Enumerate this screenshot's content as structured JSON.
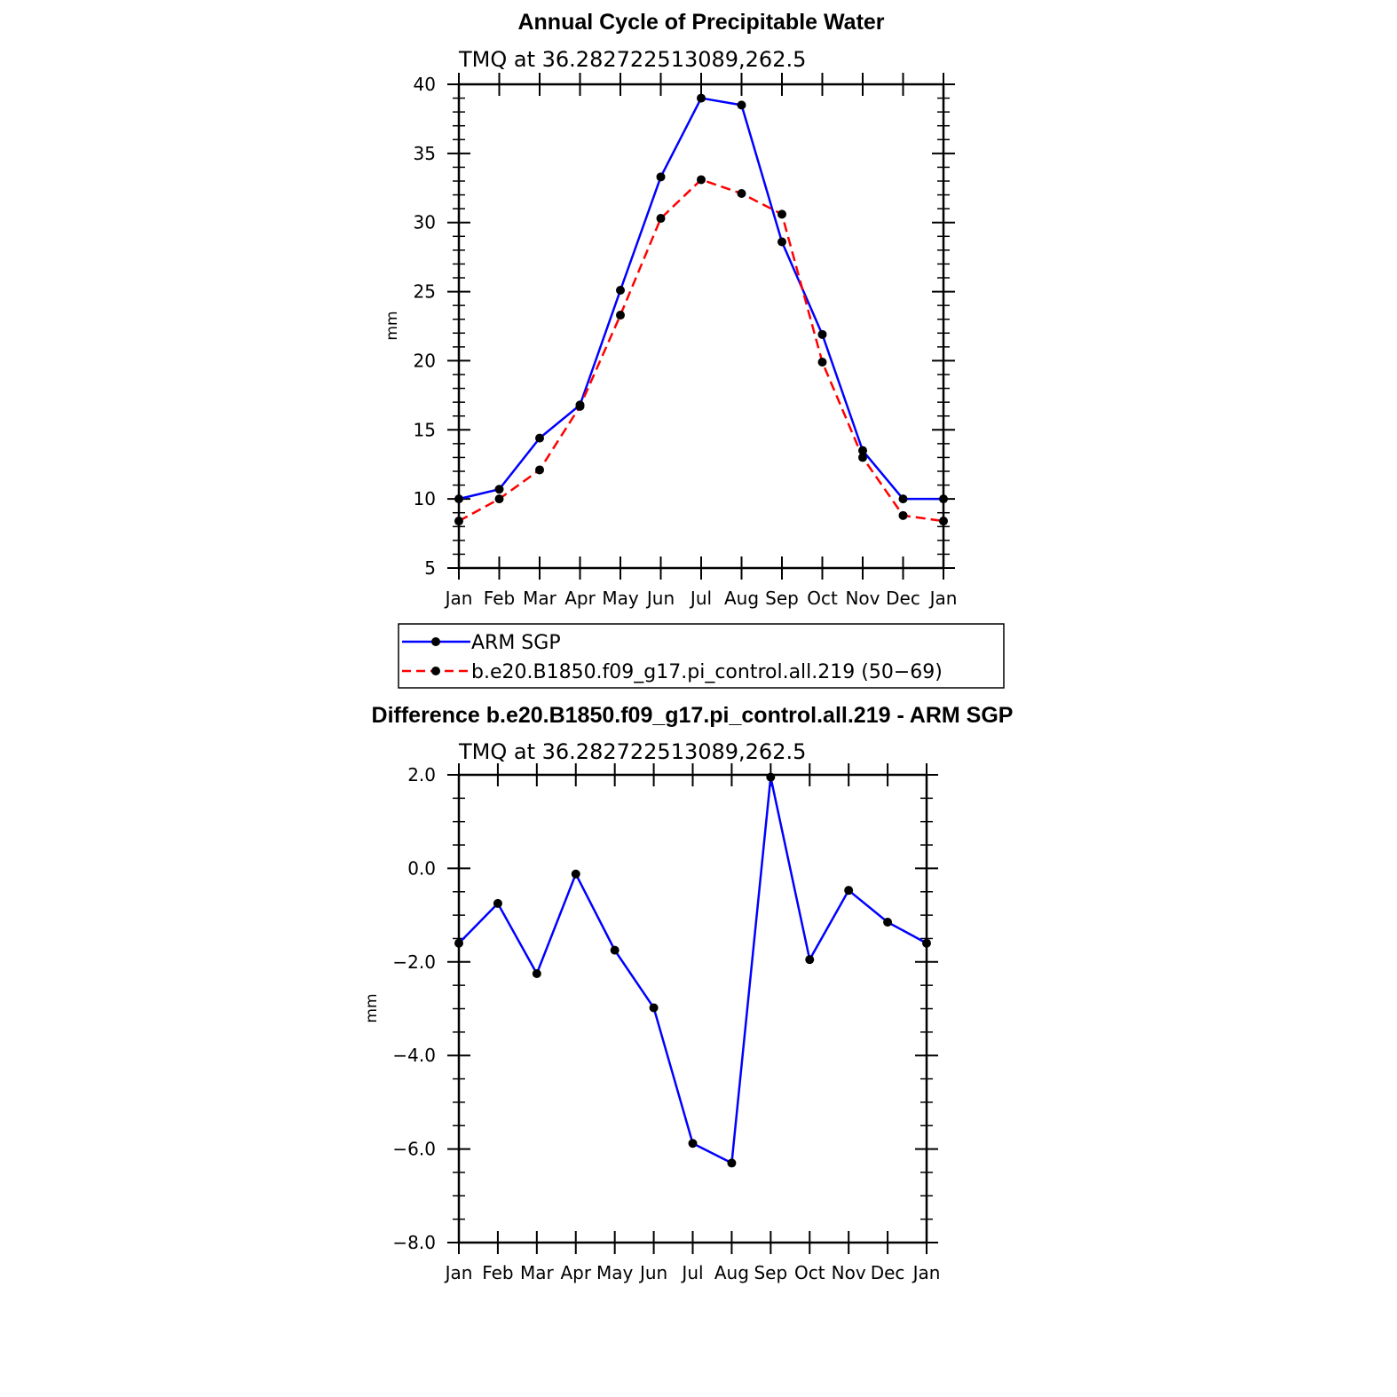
{
  "chart_data": [
    {
      "type": "line",
      "title": "Annual Cycle of Precipitable Water",
      "subtitle": "TMQ at 36.282722513089,262.5",
      "xlabel": "",
      "ylabel": "mm",
      "categories": [
        "Jan",
        "Feb",
        "Mar",
        "Apr",
        "May",
        "Jun",
        "Jul",
        "Aug",
        "Sep",
        "Oct",
        "Nov",
        "Dec",
        "Jan"
      ],
      "ylim": [
        5,
        40
      ],
      "yticks": [
        5,
        10,
        15,
        20,
        25,
        30,
        35,
        40
      ],
      "ytick_labels": [
        "5",
        "10",
        "15",
        "20",
        "25",
        "30",
        "35",
        "40"
      ],
      "legend_position": "bottom",
      "series": [
        {
          "name": "ARM SGP",
          "color": "#0000ff",
          "dash": "solid",
          "marker": "filled-circle",
          "values": [
            10.0,
            10.7,
            14.4,
            16.8,
            25.1,
            33.3,
            39.0,
            38.5,
            28.6,
            21.9,
            13.5,
            10.0,
            10.0
          ]
        },
        {
          "name": "b.e20.B1850.f09_g17.pi_control.all.219 (50−69)",
          "color": "#ff0000",
          "dash": "dashed",
          "marker": "filled-circle",
          "values": [
            8.4,
            10.0,
            12.1,
            16.7,
            23.3,
            30.3,
            33.1,
            32.1,
            30.6,
            19.9,
            13.0,
            8.8,
            8.4
          ]
        }
      ]
    },
    {
      "type": "line",
      "title": "Difference b.e20.B1850.f09_g17.pi_control.all.219 - ARM SGP",
      "subtitle": "TMQ at 36.282722513089,262.5",
      "xlabel": "",
      "ylabel": "mm",
      "categories": [
        "Jan",
        "Feb",
        "Mar",
        "Apr",
        "May",
        "Jun",
        "Jul",
        "Aug",
        "Sep",
        "Oct",
        "Nov",
        "Dec",
        "Jan"
      ],
      "ylim": [
        -8.0,
        2.0
      ],
      "yticks": [
        -8.0,
        -6.0,
        -4.0,
        -2.0,
        0.0,
        2.0
      ],
      "ytick_labels": [
        "−8.0",
        "−6.0",
        "−4.0",
        "−2.0",
        "0.0",
        "2.0"
      ],
      "series": [
        {
          "name": "Difference",
          "color": "#0000ff",
          "dash": "solid",
          "marker": "filled-circle",
          "values": [
            -1.6,
            -0.75,
            -2.25,
            -0.12,
            -1.75,
            -2.98,
            -5.88,
            -6.3,
            1.95,
            -1.95,
            -0.47,
            -1.15,
            -1.6
          ]
        }
      ]
    }
  ]
}
